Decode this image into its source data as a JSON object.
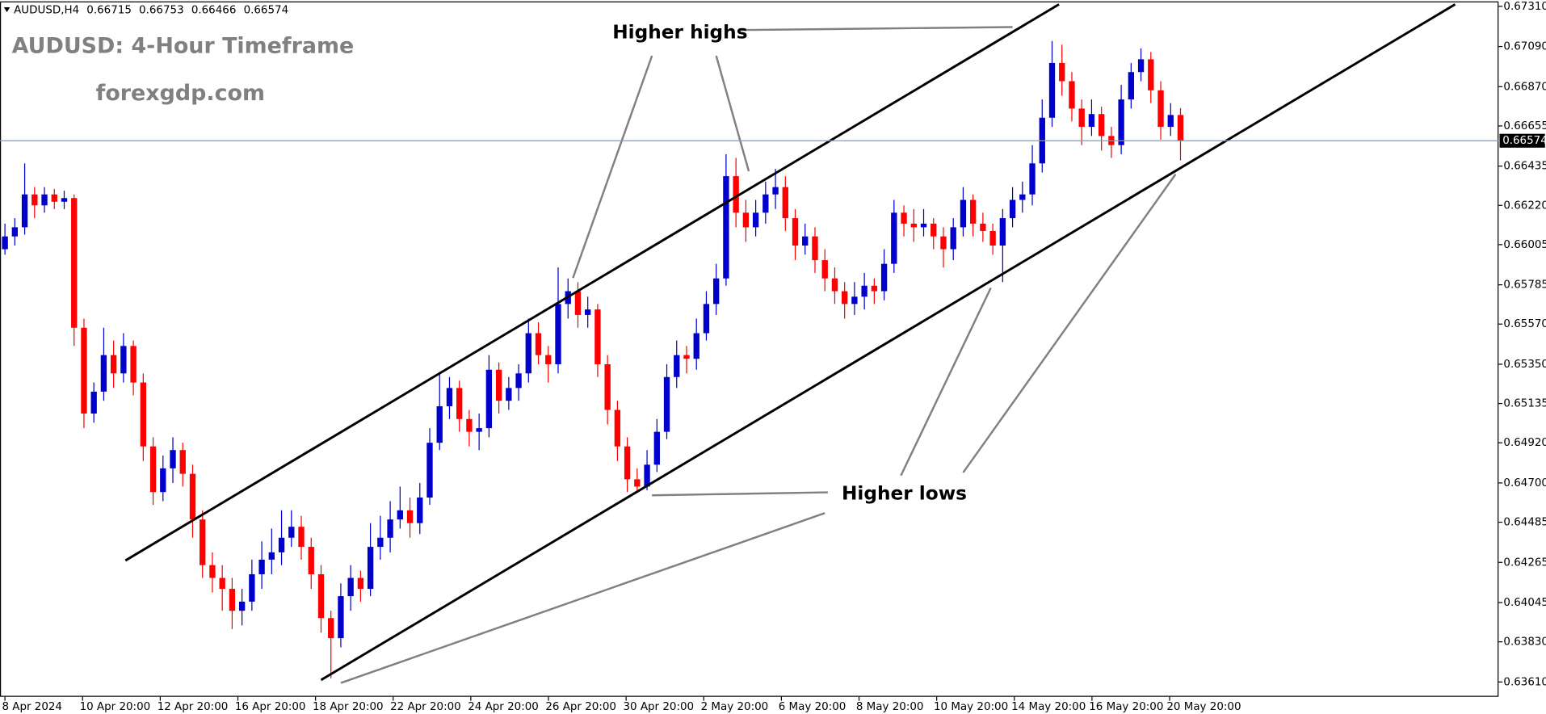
{
  "chart_data": {
    "type": "candlestick",
    "symbol": "AUDUSD,H4",
    "title": "AUDUSD: 4-Hour Timeframe",
    "subtitle": "forexgdp.com",
    "annotations": [
      "Higher highs",
      "Higher lows"
    ],
    "up_color": "#0000cc",
    "down_color": "#ff0000",
    "ylim": [
      0.6361,
      0.6731
    ],
    "yticks": [
      {
        "value": 0.6731,
        "label": "0.67310"
      },
      {
        "value": 0.6709,
        "label": "0.67090"
      },
      {
        "value": 0.6687,
        "label": "0.66870"
      },
      0.66655,
      0.66435,
      {
        "value": 0.6622,
        "label": "0.66220"
      },
      0.66005,
      0.65785,
      {
        "value": 0.6557,
        "label": "0.65570"
      },
      {
        "value": 0.6535,
        "label": "0.65350"
      },
      0.65135,
      {
        "value": 0.6492,
        "label": "0.64920"
      },
      {
        "value": 0.647,
        "label": "0.64700"
      },
      0.64485,
      0.64265,
      0.64045,
      {
        "value": 0.6383,
        "label": "0.63830"
      },
      {
        "value": 0.6361,
        "label": "0.63610"
      }
    ],
    "xtick_labels": [
      "8 Apr 2024",
      "10 Apr 20:00",
      "12 Apr 20:00",
      "16 Apr 20:00",
      "18 Apr 20:00",
      "22 Apr 20:00",
      "24 Apr 20:00",
      "26 Apr 20:00",
      "30 Apr 20:00",
      "2 May 20:00",
      "6 May 20:00",
      "8 May 20:00",
      "10 May 20:00",
      "14 May 20:00",
      "16 May 20:00",
      "20 May 20:00"
    ],
    "candles": [
      [
        0.6598,
        0.6612,
        0.6595,
        0.6605
      ],
      [
        0.6605,
        0.6615,
        0.66,
        0.661
      ],
      [
        0.661,
        0.6645,
        0.6606,
        0.6628
      ],
      [
        0.6628,
        0.6632,
        0.6615,
        0.6622
      ],
      [
        0.6622,
        0.6632,
        0.6618,
        0.6628
      ],
      [
        0.6628,
        0.6631,
        0.662,
        0.6624
      ],
      [
        0.6624,
        0.663,
        0.662,
        0.6626
      ],
      [
        0.6626,
        0.6628,
        0.6545,
        0.6555
      ],
      [
        0.6555,
        0.656,
        0.65,
        0.6508
      ],
      [
        0.6508,
        0.6525,
        0.6503,
        0.652
      ],
      [
        0.652,
        0.6555,
        0.6515,
        0.654
      ],
      [
        0.654,
        0.6548,
        0.6522,
        0.653
      ],
      [
        0.653,
        0.6552,
        0.6525,
        0.6545
      ],
      [
        0.6545,
        0.6548,
        0.6518,
        0.6525
      ],
      [
        0.6525,
        0.653,
        0.6482,
        0.649
      ],
      [
        0.649,
        0.6495,
        0.6458,
        0.6465
      ],
      [
        0.6465,
        0.6485,
        0.646,
        0.6478
      ],
      [
        0.6478,
        0.6495,
        0.647,
        0.6488
      ],
      [
        0.6488,
        0.6492,
        0.6468,
        0.6475
      ],
      [
        0.6475,
        0.648,
        0.644,
        0.645
      ],
      [
        0.645,
        0.6455,
        0.6418,
        0.6425
      ],
      [
        0.6425,
        0.6432,
        0.641,
        0.6418
      ],
      [
        0.6418,
        0.6425,
        0.64,
        0.6412
      ],
      [
        0.6412,
        0.6418,
        0.639,
        0.64
      ],
      [
        0.64,
        0.6412,
        0.6392,
        0.6405
      ],
      [
        0.6405,
        0.6428,
        0.64,
        0.642
      ],
      [
        0.642,
        0.6438,
        0.6412,
        0.6428
      ],
      [
        0.6428,
        0.6445,
        0.642,
        0.6432
      ],
      [
        0.6432,
        0.6455,
        0.6425,
        0.644
      ],
      [
        0.644,
        0.6455,
        0.6435,
        0.6446
      ],
      [
        0.6446,
        0.6452,
        0.6428,
        0.6435
      ],
      [
        0.6435,
        0.644,
        0.6412,
        0.642
      ],
      [
        0.642,
        0.6425,
        0.6388,
        0.6396
      ],
      [
        0.6396,
        0.64,
        0.6363,
        0.6385
      ],
      [
        0.6385,
        0.6415,
        0.638,
        0.6408
      ],
      [
        0.6408,
        0.6425,
        0.64,
        0.6418
      ],
      [
        0.6418,
        0.6422,
        0.6405,
        0.6412
      ],
      [
        0.6412,
        0.6448,
        0.6408,
        0.6435
      ],
      [
        0.6435,
        0.6452,
        0.6428,
        0.644
      ],
      [
        0.644,
        0.646,
        0.6432,
        0.645
      ],
      [
        0.645,
        0.6468,
        0.6445,
        0.6455
      ],
      [
        0.6455,
        0.6462,
        0.644,
        0.6448
      ],
      [
        0.6448,
        0.647,
        0.6442,
        0.6462
      ],
      [
        0.6462,
        0.65,
        0.6458,
        0.6492
      ],
      [
        0.6492,
        0.653,
        0.6488,
        0.6512
      ],
      [
        0.6512,
        0.6528,
        0.6505,
        0.6522
      ],
      [
        0.6522,
        0.6526,
        0.6498,
        0.6505
      ],
      [
        0.6505,
        0.651,
        0.649,
        0.6498
      ],
      [
        0.6498,
        0.6508,
        0.6488,
        0.65
      ],
      [
        0.65,
        0.654,
        0.6495,
        0.6532
      ],
      [
        0.6532,
        0.6536,
        0.6508,
        0.6515
      ],
      [
        0.6515,
        0.6528,
        0.651,
        0.6522
      ],
      [
        0.6522,
        0.6535,
        0.6515,
        0.653
      ],
      [
        0.653,
        0.656,
        0.6525,
        0.6552
      ],
      [
        0.6552,
        0.6558,
        0.6535,
        0.654
      ],
      [
        0.654,
        0.6545,
        0.6525,
        0.6535
      ],
      [
        0.6535,
        0.6588,
        0.653,
        0.6568
      ],
      [
        0.6568,
        0.6582,
        0.656,
        0.6575
      ],
      [
        0.6575,
        0.658,
        0.6555,
        0.6562
      ],
      [
        0.6562,
        0.6572,
        0.6555,
        0.6565
      ],
      [
        0.6565,
        0.6568,
        0.6528,
        0.6535
      ],
      [
        0.6535,
        0.654,
        0.6502,
        0.651
      ],
      [
        0.651,
        0.6515,
        0.6482,
        0.649
      ],
      [
        0.649,
        0.6495,
        0.6465,
        0.6472
      ],
      [
        0.6472,
        0.6478,
        0.6465,
        0.6468
      ],
      [
        0.6468,
        0.6488,
        0.6466,
        0.648
      ],
      [
        0.648,
        0.6505,
        0.6476,
        0.6498
      ],
      [
        0.6498,
        0.6535,
        0.6494,
        0.6528
      ],
      [
        0.6528,
        0.6548,
        0.6522,
        0.654
      ],
      [
        0.654,
        0.6545,
        0.653,
        0.6538
      ],
      [
        0.6538,
        0.656,
        0.6532,
        0.6552
      ],
      [
        0.6552,
        0.6575,
        0.6548,
        0.6568
      ],
      [
        0.6568,
        0.659,
        0.6562,
        0.6582
      ],
      [
        0.6582,
        0.665,
        0.6578,
        0.6638
      ],
      [
        0.6638,
        0.6648,
        0.661,
        0.6618
      ],
      [
        0.6618,
        0.6625,
        0.6602,
        0.661
      ],
      [
        0.661,
        0.6625,
        0.6605,
        0.6618
      ],
      [
        0.6618,
        0.6635,
        0.6612,
        0.6628
      ],
      [
        0.6628,
        0.6642,
        0.662,
        0.6632
      ],
      [
        0.6632,
        0.6638,
        0.6608,
        0.6615
      ],
      [
        0.6615,
        0.662,
        0.6592,
        0.66
      ],
      [
        0.66,
        0.6612,
        0.6595,
        0.6605
      ],
      [
        0.6605,
        0.661,
        0.6585,
        0.6592
      ],
      [
        0.6592,
        0.6598,
        0.6575,
        0.6582
      ],
      [
        0.6582,
        0.6588,
        0.6568,
        0.6575
      ],
      [
        0.6575,
        0.658,
        0.656,
        0.6568
      ],
      [
        0.6568,
        0.658,
        0.6562,
        0.6572
      ],
      [
        0.6572,
        0.6585,
        0.6565,
        0.6578
      ],
      [
        0.6578,
        0.6582,
        0.6568,
        0.6575
      ],
      [
        0.6575,
        0.6598,
        0.657,
        0.659
      ],
      [
        0.659,
        0.6625,
        0.6585,
        0.6618
      ],
      [
        0.6618,
        0.6622,
        0.6605,
        0.6612
      ],
      [
        0.6612,
        0.662,
        0.6602,
        0.661
      ],
      [
        0.661,
        0.662,
        0.6605,
        0.6612
      ],
      [
        0.6612,
        0.6615,
        0.6598,
        0.6605
      ],
      [
        0.6605,
        0.661,
        0.6588,
        0.6598
      ],
      [
        0.6598,
        0.6615,
        0.6592,
        0.661
      ],
      [
        0.661,
        0.6632,
        0.6605,
        0.6625
      ],
      [
        0.6625,
        0.6628,
        0.6605,
        0.6612
      ],
      [
        0.6612,
        0.6618,
        0.6602,
        0.6608
      ],
      [
        0.6608,
        0.6612,
        0.6595,
        0.66
      ],
      [
        0.66,
        0.662,
        0.658,
        0.6615
      ],
      [
        0.6615,
        0.6632,
        0.661,
        0.6625
      ],
      [
        0.6625,
        0.6635,
        0.6618,
        0.6628
      ],
      [
        0.6628,
        0.6655,
        0.6622,
        0.6645
      ],
      [
        0.6645,
        0.668,
        0.664,
        0.667
      ],
      [
        0.667,
        0.6712,
        0.6665,
        0.67
      ],
      [
        0.67,
        0.671,
        0.6682,
        0.669
      ],
      [
        0.669,
        0.6695,
        0.6668,
        0.6675
      ],
      [
        0.6675,
        0.668,
        0.6655,
        0.6665
      ],
      [
        0.6665,
        0.668,
        0.666,
        0.6672
      ],
      [
        0.6672,
        0.6676,
        0.6652,
        0.666
      ],
      [
        0.666,
        0.6665,
        0.6648,
        0.6655
      ],
      [
        0.6655,
        0.6688,
        0.665,
        0.668
      ],
      [
        0.668,
        0.67,
        0.6675,
        0.6695
      ],
      [
        0.6695,
        0.6708,
        0.669,
        0.6702
      ],
      [
        0.6702,
        0.6706,
        0.6678,
        0.6685
      ],
      [
        0.6685,
        0.669,
        0.6658,
        0.6665
      ],
      [
        0.6665,
        0.6678,
        0.666,
        0.66715
      ],
      [
        0.66715,
        0.66753,
        0.66466,
        0.66574
      ]
    ]
  }
}
